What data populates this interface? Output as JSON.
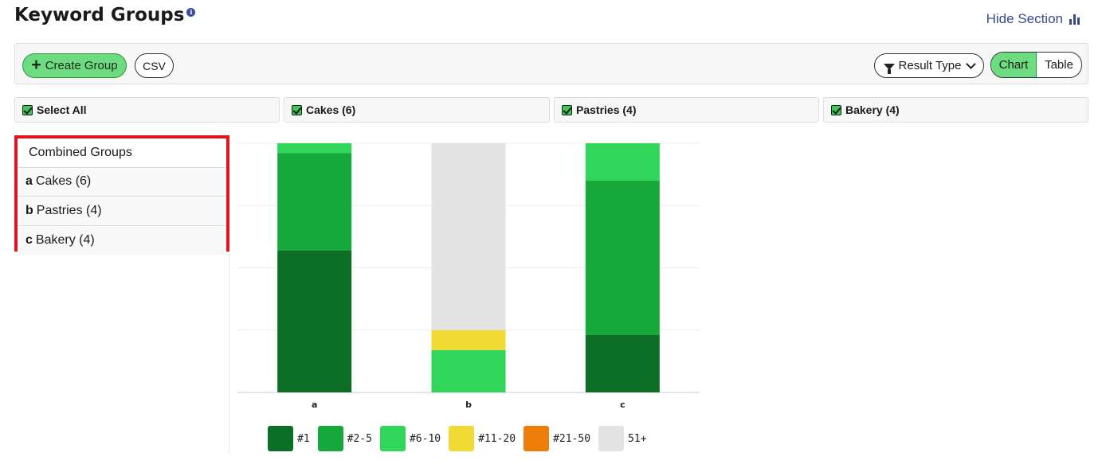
{
  "header": {
    "title": "Keyword Groups",
    "info_icon": "info-icon",
    "hide_section_label": "Hide Section",
    "hide_section_icon": "bar-chart-icon"
  },
  "toolbar": {
    "create_group_label": "Create Group",
    "csv_label": "CSV",
    "result_type_label": "Result Type",
    "view_options": [
      "Chart",
      "Table"
    ],
    "active_view": "Chart"
  },
  "filters": [
    {
      "label": "Select All",
      "checked": true
    },
    {
      "label": "Cakes (6)",
      "checked": true
    },
    {
      "label": "Pastries (4)",
      "checked": true
    },
    {
      "label": "Bakery (4)",
      "checked": true
    }
  ],
  "groups_panel": {
    "header": "Combined Groups",
    "items": [
      {
        "letter": "a",
        "label": "Cakes (6)"
      },
      {
        "letter": "b",
        "label": "Pastries (4)"
      },
      {
        "letter": "c",
        "label": "Bakery (4)"
      }
    ]
  },
  "colors": {
    "accent_green": "#6ddb7f",
    "highlight_red": "#e0141c",
    "rank_1": "#0d6e25",
    "rank_2_5": "#16a83a",
    "rank_6_10": "#2fd65a",
    "rank_11_20": "#f2da34",
    "rank_21_50": "#ee7d0a",
    "rank_51_plus": "#e3e3e3"
  },
  "chart_data": {
    "type": "bar",
    "stacked": true,
    "categories": [
      "a",
      "b",
      "c"
    ],
    "ylim": [
      0,
      100
    ],
    "grid": true,
    "legend_position": "bottom",
    "series": [
      {
        "name": "#1",
        "color": "#0d6e25",
        "values": [
          57,
          0,
          23
        ]
      },
      {
        "name": "#2-5",
        "color": "#16a83a",
        "values": [
          39,
          0,
          62
        ]
      },
      {
        "name": "#6-10",
        "color": "#2fd65a",
        "values": [
          4,
          17,
          15
        ]
      },
      {
        "name": "#11-20",
        "color": "#f2da34",
        "values": [
          0,
          8,
          0
        ]
      },
      {
        "name": "#21-50",
        "color": "#ee7d0a",
        "values": [
          0,
          0,
          0
        ]
      },
      {
        "name": "51+",
        "color": "#e3e3e3",
        "values": [
          0,
          75,
          0
        ]
      }
    ]
  }
}
